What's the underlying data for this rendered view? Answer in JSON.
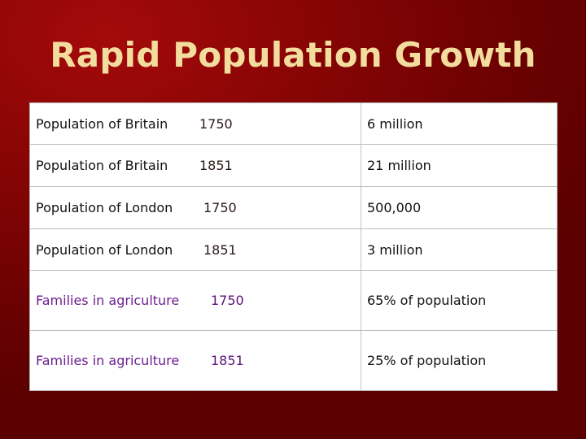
{
  "slide": {
    "title": "Rapid Population Growth"
  },
  "table": {
    "rows": [
      {
        "label": "Population of Britain",
        "year": "1750",
        "value": "6 million"
      },
      {
        "label": "Population of Britain",
        "year": "1851",
        "value": "21 million"
      },
      {
        "label": "Population of London",
        "year": "1750",
        "value": "500,000"
      },
      {
        "label": "Population of London",
        "year": "1851",
        "value": "3 million"
      },
      {
        "label": "Families in agriculture",
        "year": "1750",
        "value": "65% of population"
      },
      {
        "label": "Families in agriculture",
        "year": "1851",
        "value": "25% of population"
      }
    ]
  },
  "colors": {
    "background": "#8a0505",
    "title": "#f2dc9e",
    "table_background": "#ffffff",
    "highlight_text": "#6b1f8f"
  }
}
